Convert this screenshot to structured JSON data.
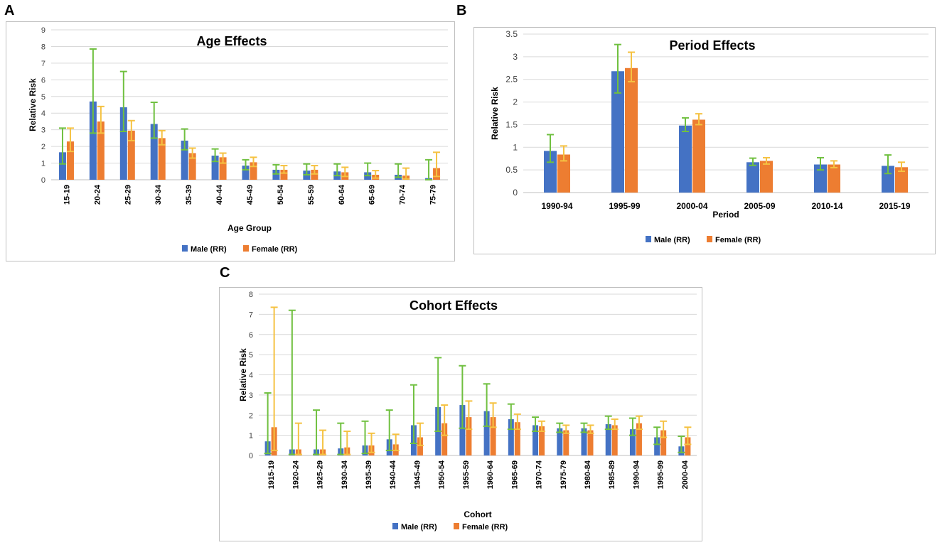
{
  "panels": {
    "a": "A",
    "b": "B",
    "c": "C"
  },
  "colors": {
    "male": "#4472C4",
    "female": "#ED7D31",
    "male_err": "#70C040",
    "female_err": "#F5C242",
    "grid": "#D9D9D9",
    "frame": "#BFBFBF",
    "axis_text": "#404040"
  },
  "chart_data": [
    {
      "id": "A",
      "type": "bar",
      "title": "Age Effects",
      "xlabel": "Age Group",
      "ylabel": "Relative Risk",
      "ylim": [
        0,
        9
      ],
      "yticks": [
        "0",
        "1",
        "2",
        "3",
        "4",
        "5",
        "6",
        "7",
        "8",
        "9"
      ],
      "categories": [
        "15-19",
        "20-24",
        "25-29",
        "30-34",
        "35-39",
        "40-44",
        "45-49",
        "50-54",
        "55-59",
        "60-64",
        "65-69",
        "70-74",
        "75-79"
      ],
      "series": [
        {
          "name": "Male (RR)",
          "values": [
            1.65,
            4.7,
            4.35,
            3.35,
            2.35,
            1.45,
            0.85,
            0.6,
            0.55,
            0.5,
            0.45,
            0.3,
            0.1
          ],
          "err_low": [
            0.95,
            2.8,
            2.9,
            2.5,
            1.8,
            1.1,
            0.6,
            0.35,
            0.3,
            0.25,
            0.25,
            0.15,
            0.0
          ],
          "err_high": [
            3.1,
            7.85,
            6.5,
            4.65,
            3.05,
            1.85,
            1.2,
            0.9,
            0.95,
            0.95,
            1.0,
            0.95,
            1.2
          ]
        },
        {
          "name": "Female (RR)",
          "values": [
            2.3,
            3.5,
            2.95,
            2.5,
            1.6,
            1.35,
            1.05,
            0.6,
            0.6,
            0.45,
            0.3,
            0.25,
            0.7
          ],
          "err_low": [
            1.7,
            2.8,
            2.35,
            2.1,
            1.3,
            1.0,
            0.8,
            0.4,
            0.35,
            0.2,
            0.1,
            0.05,
            0.2
          ],
          "err_high": [
            3.1,
            4.4,
            3.55,
            2.95,
            1.9,
            1.6,
            1.35,
            0.85,
            0.85,
            0.75,
            0.55,
            0.7,
            1.65
          ]
        }
      ]
    },
    {
      "id": "B",
      "type": "bar",
      "title": "Period Effects",
      "xlabel": "Period",
      "ylabel": "Relative Risk",
      "ylim": [
        0,
        3.5
      ],
      "yticks": [
        "0",
        "0.5",
        "1",
        "1.5",
        "2",
        "2.5",
        "3",
        "3.5"
      ],
      "categories": [
        "1990-94",
        "1995-99",
        "2000-04",
        "2005-09",
        "2010-14",
        "2015-19"
      ],
      "series": [
        {
          "name": "Male (RR)",
          "values": [
            0.92,
            2.68,
            1.48,
            0.67,
            0.62,
            0.59
          ],
          "err_low": [
            0.67,
            2.2,
            1.35,
            0.6,
            0.5,
            0.42
          ],
          "err_high": [
            1.28,
            3.27,
            1.65,
            0.76,
            0.77,
            0.83
          ]
        },
        {
          "name": "Female (RR)",
          "values": [
            0.84,
            2.75,
            1.61,
            0.7,
            0.62,
            0.56
          ],
          "err_low": [
            0.7,
            2.45,
            1.5,
            0.63,
            0.55,
            0.47
          ],
          "err_high": [
            1.03,
            3.1,
            1.74,
            0.77,
            0.7,
            0.67
          ]
        }
      ]
    },
    {
      "id": "C",
      "type": "bar",
      "title": "Cohort Effects",
      "xlabel": "Cohort",
      "ylabel": "Relative Risk",
      "ylim": [
        0,
        8
      ],
      "yticks": [
        "0",
        "1",
        "2",
        "3",
        "4",
        "5",
        "6",
        "7",
        "8"
      ],
      "categories": [
        "1915-19",
        "1920-24",
        "1925-29",
        "1930-34",
        "1935-39",
        "1940-44",
        "1945-49",
        "1950-54",
        "1955-59",
        "1960-64",
        "1965-69",
        "1970-74",
        "1975-79",
        "1980-84",
        "1985-89",
        "1990-94",
        "1995-99",
        "2000-04"
      ],
      "series": [
        {
          "name": "Male (RR)",
          "values": [
            0.7,
            0.3,
            0.3,
            0.35,
            0.5,
            0.8,
            1.5,
            2.4,
            2.5,
            2.2,
            1.8,
            1.5,
            1.35,
            1.35,
            1.55,
            1.3,
            0.9,
            0.45
          ],
          "err_low": [
            0.1,
            0.05,
            0.05,
            0.05,
            0.1,
            0.25,
            0.6,
            1.2,
            1.35,
            1.45,
            1.3,
            1.2,
            1.15,
            1.15,
            1.3,
            1.0,
            0.55,
            0.15
          ],
          "err_high": [
            3.1,
            7.2,
            2.25,
            1.6,
            1.7,
            2.25,
            3.5,
            4.85,
            4.45,
            3.55,
            2.55,
            1.9,
            1.6,
            1.6,
            1.95,
            1.85,
            1.4,
            0.95
          ]
        },
        {
          "name": "Female (RR)",
          "values": [
            1.4,
            0.3,
            0.3,
            0.4,
            0.5,
            0.55,
            0.9,
            1.6,
            1.9,
            1.9,
            1.65,
            1.45,
            1.25,
            1.25,
            1.5,
            1.6,
            1.25,
            0.9
          ],
          "err_low": [
            0.25,
            0.05,
            0.05,
            0.05,
            0.15,
            0.25,
            0.5,
            1.0,
            1.3,
            1.4,
            1.3,
            1.2,
            1.1,
            1.1,
            1.3,
            1.3,
            0.9,
            0.55
          ],
          "err_high": [
            7.35,
            1.6,
            1.25,
            1.2,
            1.1,
            1.05,
            1.6,
            2.5,
            2.7,
            2.6,
            2.05,
            1.7,
            1.5,
            1.5,
            1.8,
            1.95,
            1.7,
            1.4
          ]
        }
      ]
    }
  ]
}
